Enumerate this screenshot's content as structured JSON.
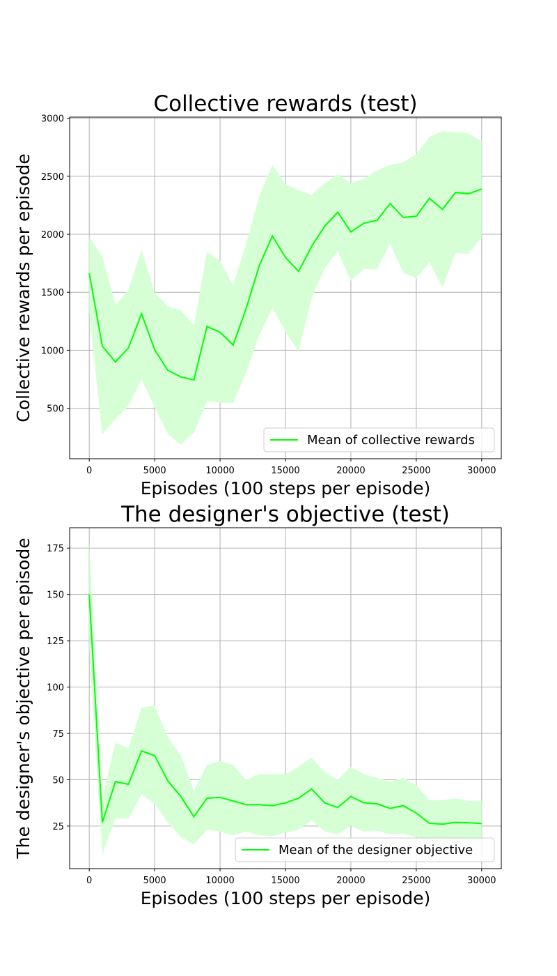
{
  "chart_data": [
    {
      "type": "line",
      "title": "Collective rewards (test)",
      "xlabel": "Episodes (100 steps per episode)",
      "ylabel": "Collective rewards per episode",
      "xlim": [
        -1500,
        31500
      ],
      "ylim": [
        65,
        3010
      ],
      "xticks": [
        0,
        5000,
        10000,
        15000,
        20000,
        25000,
        30000
      ],
      "yticks": [
        500,
        1000,
        1500,
        2000,
        2500,
        3000
      ],
      "grid": true,
      "legend_position": "lower-right",
      "line_color": "#00ff00",
      "band_color": "#d6ffd6",
      "x": [
        0,
        1000,
        2000,
        3000,
        4000,
        5000,
        6000,
        7000,
        8000,
        9000,
        10000,
        11000,
        12000,
        13000,
        14000,
        15000,
        16000,
        17000,
        18000,
        19000,
        20000,
        21000,
        22000,
        23000,
        24000,
        25000,
        26000,
        27000,
        28000,
        29000,
        30000
      ],
      "series": [
        {
          "name": "Mean of collective rewards",
          "values": [
            1665,
            1035,
            900,
            1020,
            1315,
            1005,
            828,
            770,
            745,
            1205,
            1155,
            1045,
            1360,
            1730,
            1985,
            1800,
            1680,
            1895,
            2070,
            2190,
            2020,
            2095,
            2120,
            2265,
            2145,
            2155,
            2310,
            2215,
            2360,
            2350,
            2390
          ],
          "upper": [
            1980,
            1810,
            1390,
            1520,
            1870,
            1500,
            1380,
            1345,
            1215,
            1850,
            1770,
            1560,
            1920,
            2330,
            2600,
            2430,
            2380,
            2340,
            2440,
            2520,
            2440,
            2480,
            2550,
            2600,
            2620,
            2690,
            2840,
            2890,
            2880,
            2870,
            2800
          ],
          "lower": [
            1320,
            275,
            410,
            520,
            750,
            510,
            280,
            185,
            290,
            560,
            550,
            545,
            810,
            1130,
            1360,
            1160,
            990,
            1450,
            1710,
            1850,
            1600,
            1700,
            1700,
            1920,
            1670,
            1620,
            1760,
            1540,
            1840,
            1830,
            1980
          ]
        }
      ]
    },
    {
      "type": "line",
      "title": "The designer's objective (test)",
      "xlabel": "Episodes (100 steps per episode)",
      "ylabel": "The designer's objective per episode",
      "xlim": [
        -1500,
        31500
      ],
      "ylim": [
        2,
        186
      ],
      "xticks": [
        0,
        5000,
        10000,
        15000,
        20000,
        25000,
        30000
      ],
      "yticks": [
        25,
        50,
        75,
        100,
        125,
        150,
        175
      ],
      "grid": true,
      "legend_position": "lower-right",
      "line_color": "#00ff00",
      "band_color": "#d6ffd6",
      "x": [
        0,
        1000,
        2000,
        3000,
        4000,
        5000,
        6000,
        7000,
        8000,
        9000,
        10000,
        11000,
        12000,
        13000,
        14000,
        15000,
        16000,
        17000,
        18000,
        19000,
        20000,
        21000,
        22000,
        23000,
        24000,
        25000,
        26000,
        27000,
        28000,
        29000,
        30000
      ],
      "series": [
        {
          "name": "Mean of the designer objective",
          "values": [
            150,
            27,
            49,
            47.5,
            65.5,
            63,
            49.5,
            41,
            30,
            40,
            40.5,
            38.5,
            36.5,
            36.5,
            36,
            37.5,
            40,
            45,
            37.5,
            35,
            41,
            37.5,
            37,
            34.5,
            36,
            32,
            26.5,
            26,
            27,
            26.8,
            26.3
          ],
          "upper": [
            178,
            40,
            70,
            67,
            89,
            90,
            73,
            63,
            44,
            58,
            60,
            58,
            50,
            53,
            53,
            53,
            57,
            62,
            54,
            50,
            57,
            53,
            51,
            49,
            51,
            47,
            39,
            39,
            40,
            38.5,
            38.5
          ],
          "lower": [
            120,
            10,
            29,
            29,
            42,
            37,
            27,
            19,
            15,
            23,
            22,
            20,
            22,
            20,
            19.5,
            21.5,
            23,
            28,
            22,
            20.5,
            25,
            22,
            22.5,
            20.5,
            21,
            19,
            15,
            14,
            15.5,
            15.5,
            16
          ]
        }
      ]
    }
  ]
}
